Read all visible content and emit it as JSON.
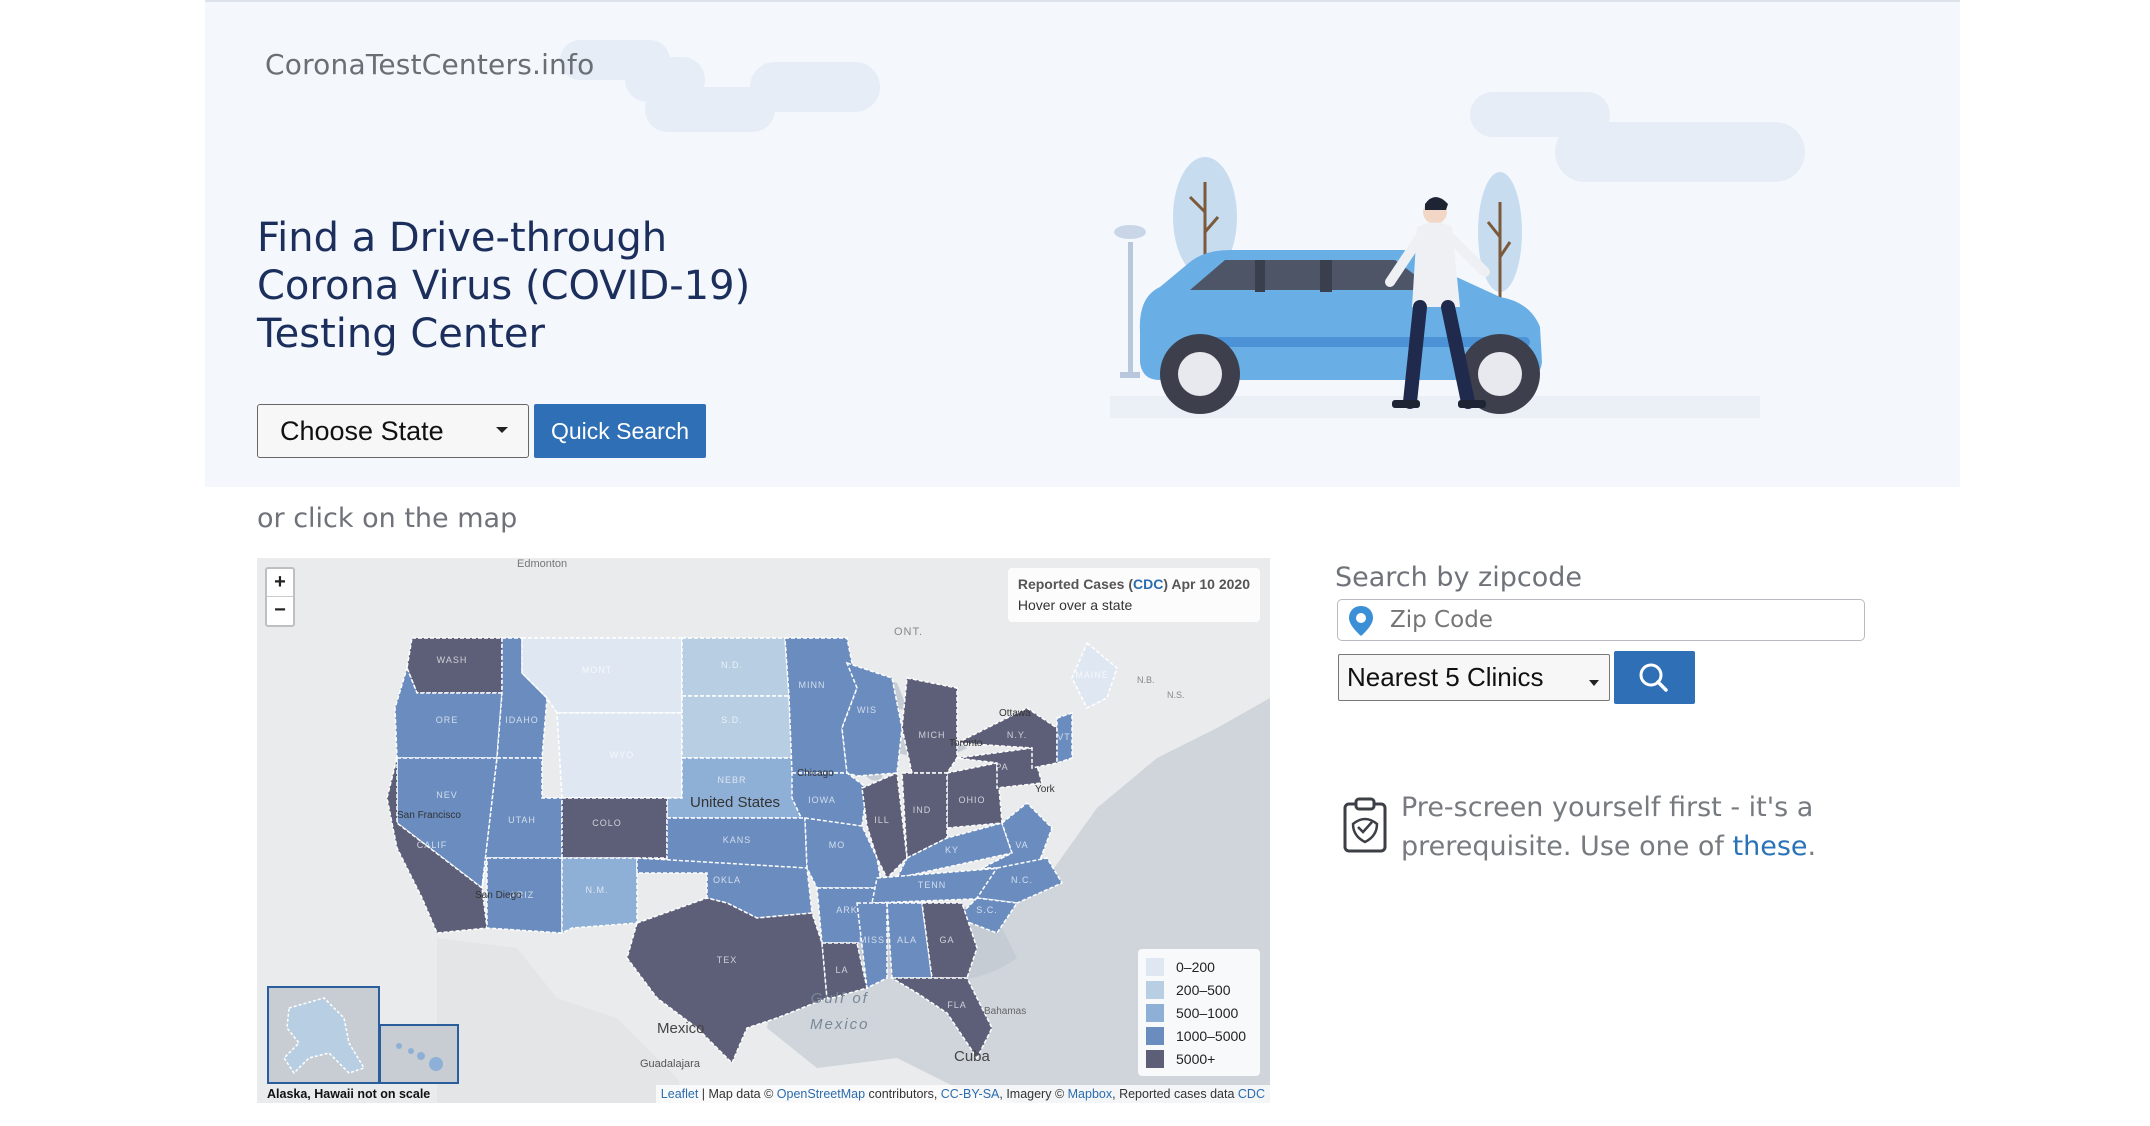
{
  "site": {
    "brand": "CoronaTestCenters.info"
  },
  "hero": {
    "headline": [
      "Find a Drive-through",
      "Corona Virus (COVID-19)",
      "Testing Center"
    ],
    "state_select_value": "Choose State",
    "quick_search_label": "Quick Search"
  },
  "map_section": {
    "hint": "or click on the map",
    "zoom_in": "+",
    "zoom_out": "−",
    "info": {
      "title_prefix": "Reported Cases (",
      "source": "CDC",
      "title_suffix": ") Apr 10 2020",
      "hover_text": "Hover over a state"
    },
    "legend": [
      {
        "label": "0–200",
        "color": "#dfe8f2"
      },
      {
        "label": "200–500",
        "color": "#b8cfe3"
      },
      {
        "label": "500–1000",
        "color": "#8fb0d6"
      },
      {
        "label": "1000–5000",
        "color": "#6a8cbf"
      },
      {
        "label": "5000+",
        "color": "#5d5f79"
      }
    ],
    "inset_note": "Alaska, Hawaii not on scale",
    "attribution": {
      "leaflet": "Leaflet",
      "map_data": " | Map data © ",
      "osm": "OpenStreetMap",
      "contributors": " contributors, ",
      "license": "CC-BY-SA",
      "imagery": ", Imagery © ",
      "mapbox": "Mapbox",
      "reported": ", Reported cases data ",
      "cdc": "CDC"
    },
    "place_labels": {
      "united_states": "United States",
      "gulf": [
        "Gulf of",
        "Mexico"
      ],
      "mexico": "Mexico",
      "cuba": "Cuba",
      "bahamas": "Bahamas",
      "edmonton": "Edmonton",
      "ont": "ONT.",
      "guadalajara": "Guadalajara",
      "chicago": "Chicago",
      "toronto": "Toronto",
      "ottawa": "Ottawa",
      "new_york": "York",
      "san_francisco": "San Francisco",
      "san_diego": "San Diego"
    },
    "state_labels": {
      "wash": "WASH",
      "ore": "ORE",
      "idaho": "IDAHO",
      "mont": "MONT",
      "wyo": "WYO",
      "nd": "N.D.",
      "sd": "S.D.",
      "nebr": "NEBR",
      "minn": "MINN",
      "iowa": "IOWA",
      "wis": "WIS",
      "mich": "MICH",
      "ohio": "OHIO",
      "nev": "NEV",
      "utah": "UTAH",
      "colo": "COLO",
      "kans": "KANS",
      "mo": "MO",
      "ill": "ILL",
      "ind": "IND",
      "ky": "KY",
      "va": "VA",
      "pa": "PA",
      "ny": "N.Y.",
      "calif": "CALIF",
      "ariz": "ARIZ",
      "nm": "N.M.",
      "okla": "OKLA",
      "ark": "ARK",
      "tenn": "TENN",
      "nc": "N.C.",
      "sc": "S.C.",
      "tex": "TEX",
      "la": "LA",
      "miss": "MISS",
      "ala": "ALA",
      "ga": "GA",
      "fla": "FLA",
      "maine": "MAINE",
      "nb": "N.B.",
      "ns": "N.S.",
      "vt": "VT"
    }
  },
  "zip_section": {
    "label": "Search by zipcode",
    "zip_placeholder": "Zip Code",
    "nearest_value": "Nearest 5 Clinics"
  },
  "prescreen": {
    "text": "Pre-screen yourself first - it's a prerequisite. Use one of ",
    "link": "these",
    "tail": "."
  },
  "colors": {
    "accent_blue": "#2f6fb6",
    "headline_navy": "#1c2f5c",
    "hero_bg": "#f4f8fd"
  }
}
